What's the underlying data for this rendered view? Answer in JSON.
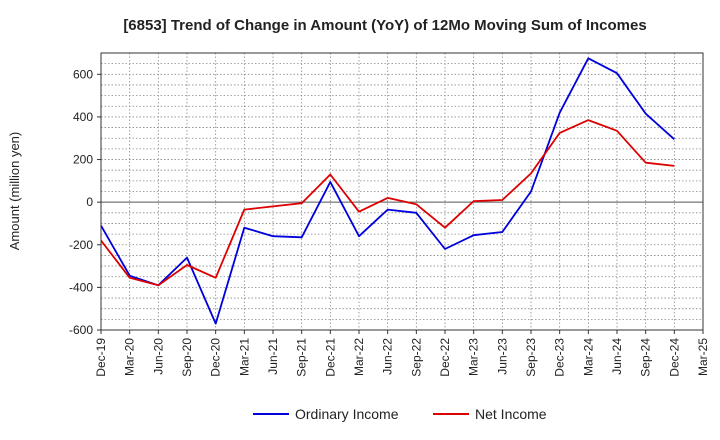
{
  "chart_data": {
    "type": "line",
    "title": "[6853]  Trend of Change in Amount (YoY) of 12Mo Moving Sum of Incomes",
    "xlabel": "",
    "ylabel": "Amount (million yen)",
    "ylim": [
      -600,
      700
    ],
    "yticks": [
      -600,
      -400,
      -200,
      0,
      200,
      400,
      600
    ],
    "grid": true,
    "legend_position": "bottom",
    "x": [
      "Dec-19",
      "Mar-20",
      "Jun-20",
      "Sep-20",
      "Dec-20",
      "Mar-21",
      "Jun-21",
      "Sep-21",
      "Dec-21",
      "Mar-22",
      "Jun-22",
      "Sep-22",
      "Dec-22",
      "Mar-23",
      "Jun-23",
      "Sep-23",
      "Dec-23",
      "Mar-24",
      "Jun-24",
      "Sep-24",
      "Dec-24",
      "Mar-25"
    ],
    "series": [
      {
        "name": "Ordinary Income",
        "color": "#0000dd",
        "values": [
          -110,
          -345,
          -390,
          -260,
          -570,
          -120,
          -160,
          -165,
          95,
          -160,
          -35,
          -50,
          -220,
          -155,
          -140,
          50,
          420,
          675,
          605,
          415,
          295,
          null
        ]
      },
      {
        "name": "Net Income",
        "color": "#dd0000",
        "values": [
          -180,
          -355,
          -390,
          -295,
          -355,
          -35,
          -20,
          -5,
          130,
          -45,
          20,
          -10,
          -120,
          5,
          10,
          135,
          325,
          385,
          335,
          185,
          170,
          null
        ]
      }
    ]
  }
}
